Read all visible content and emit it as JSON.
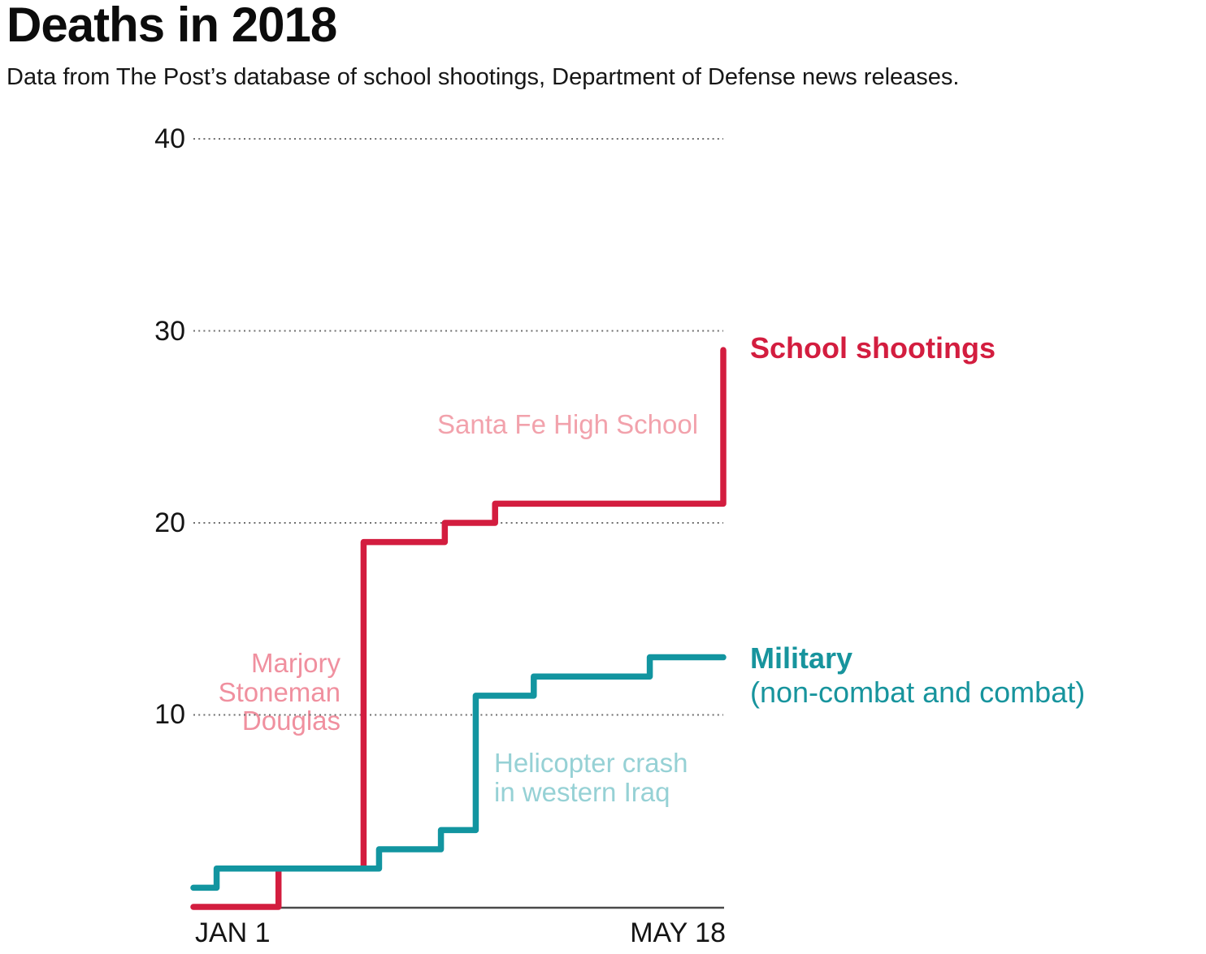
{
  "header": {
    "title": "Deaths in 2018",
    "subtitle": "Data from The Post’s database of school shootings, Department of Defense news releases."
  },
  "chart_data": {
    "type": "line",
    "line_style": "step-after",
    "title": "Deaths in 2018",
    "x_axis": {
      "tick_labels": [
        "JAN 1",
        "MAY 18"
      ],
      "units": "days since Jan 1",
      "range_days": [
        0,
        137
      ],
      "grid": false
    },
    "y_axis": {
      "ticks_top_down": [
        "40",
        "30",
        "20",
        "10"
      ],
      "tick_values": [
        40,
        30,
        20,
        10
      ],
      "range": [
        0,
        40
      ],
      "grid": "dotted"
    },
    "series": [
      {
        "name": "School shootings",
        "color": "#d31d3f",
        "points_day_total": [
          [
            0,
            0
          ],
          [
            22,
            2
          ],
          [
            44,
            19
          ],
          [
            65,
            20
          ],
          [
            78,
            21
          ],
          [
            137,
            29
          ]
        ],
        "final_total": 29
      },
      {
        "name": "Military (non-combat and combat)",
        "label_line1": "Military",
        "label_line2": "(non-combat and combat)",
        "color": "#1295a0",
        "points_day_total": [
          [
            0,
            1
          ],
          [
            6,
            2
          ],
          [
            48,
            3
          ],
          [
            64,
            4
          ],
          [
            73,
            11
          ],
          [
            88,
            12
          ],
          [
            118,
            13
          ]
        ],
        "final_total": 13
      }
    ],
    "annotations": [
      {
        "series": "School shootings",
        "lines": [
          "Santa Fe High School"
        ],
        "color": "#f2a2ac"
      },
      {
        "series": "School shootings",
        "lines": [
          "Marjory",
          "Stoneman",
          "Douglas"
        ],
        "color": "#f0909f"
      },
      {
        "series": "Military",
        "lines": [
          "Helicopter crash",
          "in western Iraq"
        ],
        "color": "#96d1d5"
      }
    ],
    "legend_position": "right-of-line-ends"
  },
  "colors": {
    "grid": "#6f6f6f",
    "axis": "#4a4a4a",
    "school_accent": "#d31d3f",
    "military_accent": "#17949d"
  }
}
